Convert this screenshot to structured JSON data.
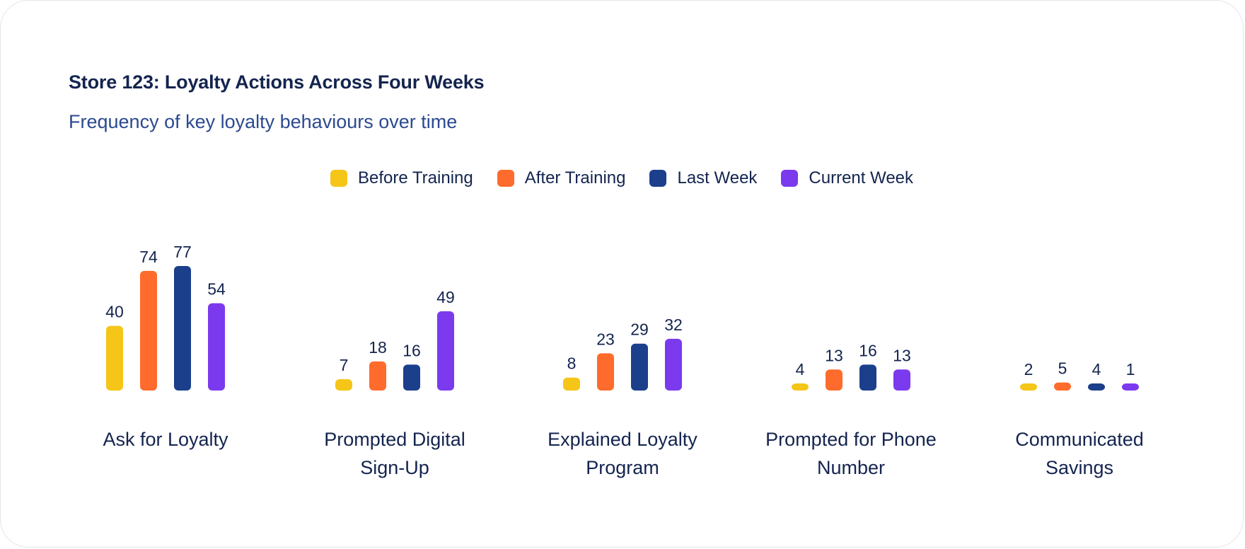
{
  "chart_data": {
    "type": "bar",
    "title": "Store 123: Loyalty Actions Across Four Weeks",
    "subtitle": "Frequency of key loyalty behaviours over time",
    "categories": [
      [
        "Ask for Loyalty"
      ],
      [
        "Prompted Digital",
        "Sign-Up"
      ],
      [
        "Explained Loyalty",
        "Program"
      ],
      [
        "Prompted for Phone",
        "Number"
      ],
      [
        "Communicated",
        "Savings"
      ]
    ],
    "series": [
      {
        "name": "Before Training",
        "color": "#f5c518",
        "values": [
          40,
          7,
          8,
          4,
          2
        ]
      },
      {
        "name": "After Training",
        "color": "#ff6b2c",
        "values": [
          74,
          18,
          23,
          13,
          5
        ]
      },
      {
        "name": "Last Week",
        "color": "#1b3f8b",
        "values": [
          77,
          16,
          29,
          16,
          4
        ]
      },
      {
        "name": "Current Week",
        "color": "#7b3aed",
        "values": [
          54,
          49,
          32,
          13,
          1
        ]
      }
    ],
    "ylim": [
      0,
      77
    ],
    "legend": "top-center",
    "grid": false
  }
}
